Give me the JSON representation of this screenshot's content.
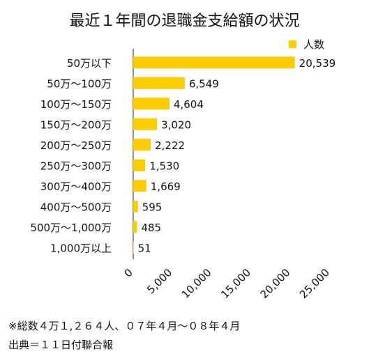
{
  "chart_data": {
    "type": "bar",
    "orientation": "horizontal",
    "title": "最近１年間の退職金支給額の状況",
    "categories": [
      "50万以下",
      "50万〜100万",
      "100万〜150万",
      "150万〜200万",
      "200万〜250万",
      "250万〜300万",
      "300万〜400万",
      "400万〜500万",
      "500万〜1,000万",
      "1,000万以上"
    ],
    "series": [
      {
        "name": "人数",
        "values": [
          20539,
          6549,
          4604,
          3020,
          2222,
          1530,
          1669,
          595,
          485,
          51
        ],
        "value_labels": [
          "20,539",
          "6,549",
          "4,604",
          "3,020",
          "2,222",
          "1,530",
          "1,669",
          "595",
          "485",
          "51"
        ]
      }
    ],
    "xlim": [
      0,
      25000
    ],
    "x_ticks": [
      0,
      5000,
      10000,
      15000,
      20000,
      25000
    ],
    "x_tick_labels": [
      "0",
      "5,000",
      "10,000",
      "15,000",
      "20,000",
      "25,000"
    ],
    "xlabel": "",
    "ylabel": "",
    "grid": false,
    "legend": "top-right",
    "bar_color": "#FFCC00"
  },
  "footnotes": {
    "note1": "※総数４万１,２６４人、０７年４月〜０８年４月",
    "note2": "出典＝１１日付聯合報"
  }
}
